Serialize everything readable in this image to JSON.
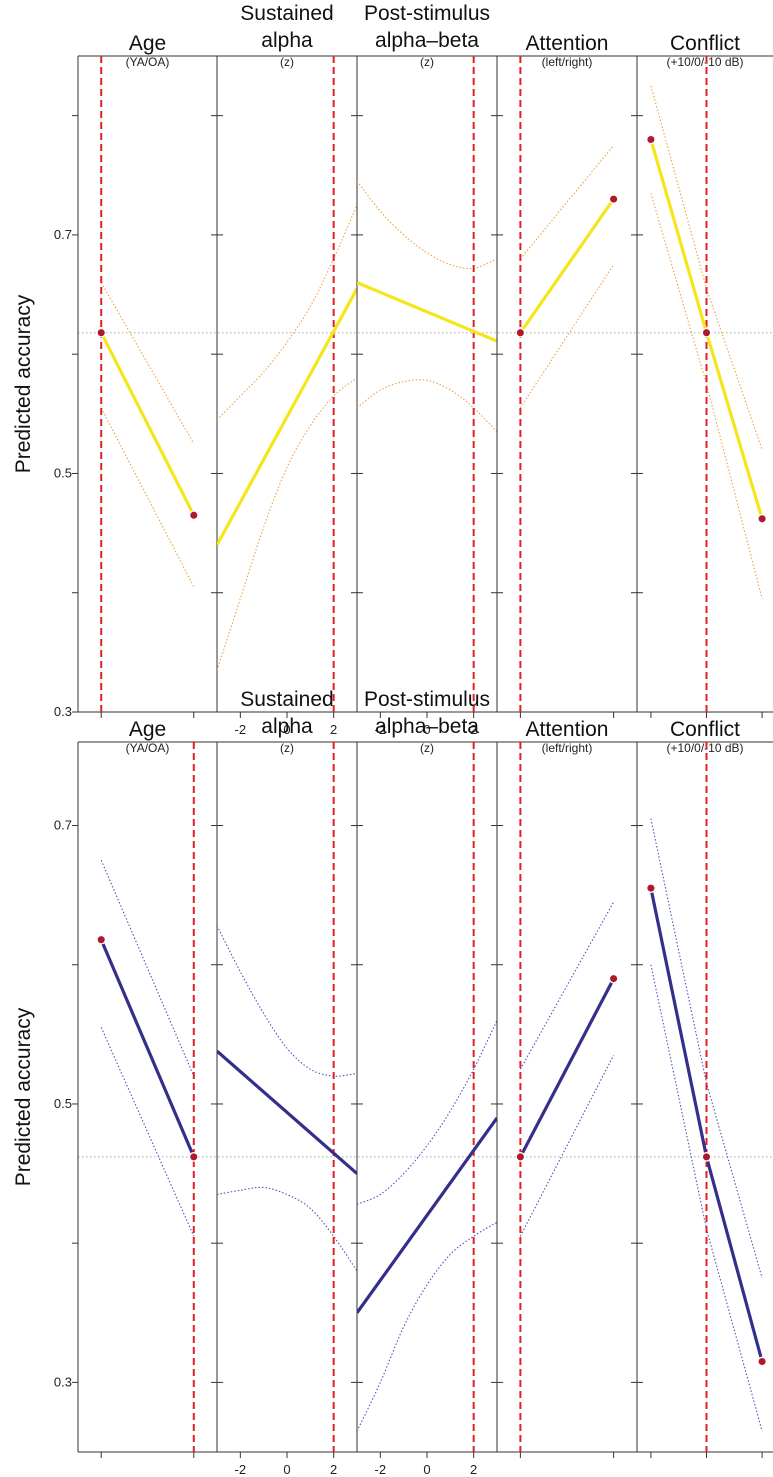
{
  "figure": {
    "ylabel": "Predicted accuracy",
    "panels": [
      {
        "title": "Age",
        "subtitle": "(YA/OA)"
      },
      {
        "title": [
          "Sustained",
          "alpha"
        ],
        "subtitle": "(z)"
      },
      {
        "title": [
          "Post-stimulus",
          "alpha–beta"
        ],
        "subtitle": "(z)"
      },
      {
        "title": "Attention",
        "subtitle": "(left/right)"
      },
      {
        "title": "Conflict",
        "subtitle": "(+10/0/-10 dB)"
      }
    ],
    "colors": {
      "top_line": "#f5e61b",
      "top_ci": "#f0a040",
      "bottom_line": "#332f8a",
      "bottom_ci": "#4a55c0",
      "reference": "#e31e24",
      "marker": "#b0192c",
      "axis": "#333333",
      "baseline": "#aaaaaa"
    }
  },
  "chart_data": [
    {
      "type": "line",
      "ylabel": "Predicted accuracy",
      "ylim": [
        0.3,
        0.85
      ],
      "yticks": [
        0.3,
        0.5,
        0.7
      ],
      "baseline": 0.618,
      "series_color": "top_line",
      "panels": [
        {
          "name": "Age",
          "type": "categorical",
          "x": [
            1,
            2
          ],
          "y": [
            0.618,
            0.465
          ],
          "ci_upper": [
            0.66,
            0.525
          ],
          "ci_lower": [
            0.555,
            0.405
          ],
          "reference_x": 1,
          "markers": true
        },
        {
          "name": "Sustained alpha",
          "type": "continuous",
          "xlim": [
            -3,
            3
          ],
          "xticks": [
            -2,
            0,
            2
          ],
          "x": [
            -3,
            3
          ],
          "y": [
            0.44,
            0.655
          ],
          "ci_upper": [
            [
              -3,
              0.545
            ],
            [
              -2,
              0.565
            ],
            [
              -1,
              0.585
            ],
            [
              0,
              0.61
            ],
            [
              1,
              0.64
            ],
            [
              2,
              0.68
            ],
            [
              3,
              0.725
            ]
          ],
          "ci_lower": [
            [
              -3,
              0.335
            ],
            [
              -2,
              0.395
            ],
            [
              -1,
              0.455
            ],
            [
              0,
              0.505
            ],
            [
              1,
              0.54
            ],
            [
              2,
              0.565
            ],
            [
              3,
              0.58
            ]
          ],
          "reference_x": 2
        },
        {
          "name": "Post-stimulus alpha–beta",
          "type": "continuous",
          "xlim": [
            -3,
            3
          ],
          "xticks": [
            -2,
            0,
            2
          ],
          "x": [
            -3,
            3
          ],
          "y": [
            0.66,
            0.611
          ],
          "ci_upper": [
            [
              -3,
              0.745
            ],
            [
              -2,
              0.72
            ],
            [
              -1,
              0.7
            ],
            [
              0,
              0.685
            ],
            [
              1,
              0.675
            ],
            [
              2,
              0.672
            ],
            [
              3,
              0.68
            ]
          ],
          "ci_lower": [
            [
              -3,
              0.555
            ],
            [
              -2,
              0.57
            ],
            [
              -1,
              0.577
            ],
            [
              0,
              0.578
            ],
            [
              1,
              0.57
            ],
            [
              2,
              0.555
            ],
            [
              3,
              0.535
            ]
          ],
          "reference_x": 2
        },
        {
          "name": "Attention",
          "type": "categorical",
          "x": [
            1,
            2
          ],
          "y": [
            0.618,
            0.73
          ],
          "ci_upper": [
            0.68,
            0.775
          ],
          "ci_lower": [
            0.555,
            0.675
          ],
          "reference_x": 1,
          "markers": true
        },
        {
          "name": "Conflict",
          "type": "categorical",
          "x": [
            1,
            2,
            3
          ],
          "y": [
            0.78,
            0.618,
            0.462
          ],
          "ci_upper": [
            0.825,
            0.655,
            0.52
          ],
          "ci_lower": [
            0.735,
            0.575,
            0.395
          ],
          "reference_x": 2,
          "markers": true
        }
      ]
    },
    {
      "type": "line",
      "ylabel": "Predicted accuracy",
      "ylim": [
        0.25,
        0.76
      ],
      "yticks": [
        0.3,
        0.5,
        0.7
      ],
      "baseline": 0.462,
      "series_color": "bottom_line",
      "panels": [
        {
          "name": "Age",
          "type": "categorical",
          "x": [
            1,
            2
          ],
          "y": [
            0.618,
            0.462
          ],
          "ci_upper": [
            0.675,
            0.52
          ],
          "ci_lower": [
            0.555,
            0.405
          ],
          "reference_x": 2,
          "markers": true
        },
        {
          "name": "Sustained alpha",
          "type": "continuous",
          "xlim": [
            -3,
            3
          ],
          "xticks": [
            -2,
            0,
            2
          ],
          "x": [
            -3,
            3
          ],
          "y": [
            0.538,
            0.45
          ],
          "ci_upper": [
            [
              -3,
              0.628
            ],
            [
              -2,
              0.595
            ],
            [
              -1,
              0.565
            ],
            [
              0,
              0.54
            ],
            [
              1,
              0.525
            ],
            [
              2,
              0.52
            ],
            [
              3,
              0.522
            ]
          ],
          "ci_lower": [
            [
              -3,
              0.435
            ],
            [
              -2,
              0.438
            ],
            [
              -1,
              0.44
            ],
            [
              0,
              0.435
            ],
            [
              1,
              0.425
            ],
            [
              2,
              0.405
            ],
            [
              3,
              0.38
            ]
          ],
          "reference_x": 2
        },
        {
          "name": "Post-stimulus alpha–beta",
          "type": "continuous",
          "xlim": [
            -3,
            3
          ],
          "xticks": [
            -2,
            0,
            2
          ],
          "x": [
            -3,
            3
          ],
          "y": [
            0.35,
            0.49
          ],
          "ci_upper": [
            [
              -3,
              0.428
            ],
            [
              -2,
              0.435
            ],
            [
              -1,
              0.45
            ],
            [
              0,
              0.47
            ],
            [
              1,
              0.495
            ],
            [
              2,
              0.525
            ],
            [
              3,
              0.56
            ]
          ],
          "ci_lower": [
            [
              -3,
              0.265
            ],
            [
              -2,
              0.3
            ],
            [
              -1,
              0.34
            ],
            [
              0,
              0.37
            ],
            [
              1,
              0.392
            ],
            [
              2,
              0.405
            ],
            [
              3,
              0.415
            ]
          ],
          "reference_x": 2
        },
        {
          "name": "Attention",
          "type": "categorical",
          "x": [
            1,
            2
          ],
          "y": [
            0.462,
            0.59
          ],
          "ci_upper": [
            0.525,
            0.645
          ],
          "ci_lower": [
            0.405,
            0.535
          ],
          "reference_x": 1,
          "markers": true
        },
        {
          "name": "Conflict",
          "type": "categorical",
          "x": [
            1,
            2,
            3
          ],
          "y": [
            0.655,
            0.462,
            0.315
          ],
          "ci_upper": [
            0.705,
            0.515,
            0.375
          ],
          "ci_lower": [
            0.6,
            0.41,
            0.265
          ],
          "reference_x": 2,
          "markers": true
        }
      ]
    }
  ]
}
